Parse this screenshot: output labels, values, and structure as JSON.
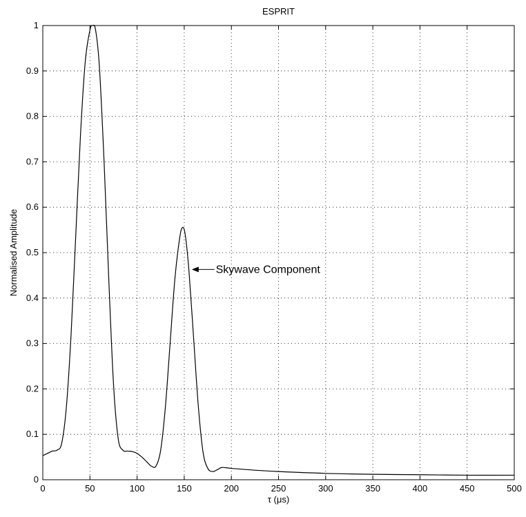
{
  "chart_data": {
    "type": "line",
    "title": "ESPRIT",
    "xlabel": "τ (μs)",
    "ylabel": "Normalised Amplitude",
    "xlim": [
      0,
      500
    ],
    "ylim": [
      0,
      1
    ],
    "xticks": [
      0,
      50,
      100,
      150,
      200,
      250,
      300,
      350,
      400,
      450,
      500
    ],
    "yticks": [
      0,
      0.1,
      0.2,
      0.3,
      0.4,
      0.5,
      0.6,
      0.7,
      0.8,
      0.9,
      1
    ],
    "xtick_labels": [
      "0",
      "50",
      "100",
      "150",
      "200",
      "250",
      "300",
      "350",
      "400",
      "450",
      "500"
    ],
    "ytick_labels": [
      "0",
      "0.1",
      "0.2",
      "0.3",
      "0.4",
      "0.5",
      "0.6",
      "0.7",
      "0.8",
      "0.9",
      "1"
    ],
    "grid": true,
    "grid_style": "dotted",
    "line_color": "#000000",
    "series": [
      {
        "x": [
          0,
          5,
          10,
          15,
          20,
          25,
          30,
          35,
          40,
          45,
          50,
          53,
          56,
          60,
          65,
          70,
          75,
          80,
          85,
          90,
          95,
          100,
          105,
          110,
          115,
          120,
          125,
          130,
          135,
          140,
          145,
          148,
          151,
          155,
          160,
          165,
          170,
          175,
          180,
          185,
          190,
          200,
          225,
          250,
          300,
          350,
          400,
          450,
          500
        ],
        "y": [
          0.053,
          0.058,
          0.063,
          0.065,
          0.08,
          0.16,
          0.32,
          0.54,
          0.76,
          0.92,
          0.99,
          1.0,
          0.99,
          0.91,
          0.7,
          0.44,
          0.21,
          0.09,
          0.065,
          0.063,
          0.062,
          0.058,
          0.05,
          0.04,
          0.03,
          0.03,
          0.065,
          0.16,
          0.3,
          0.44,
          0.53,
          0.555,
          0.54,
          0.46,
          0.31,
          0.16,
          0.06,
          0.025,
          0.018,
          0.022,
          0.027,
          0.025,
          0.021,
          0.018,
          0.014,
          0.012,
          0.011,
          0.01,
          0.01
        ]
      }
    ],
    "annotations": [
      {
        "text": "Skywave Component",
        "x": 182,
        "y": 0.463,
        "arrow_to_x": 158,
        "arrow_to_y": 0.463
      }
    ]
  }
}
